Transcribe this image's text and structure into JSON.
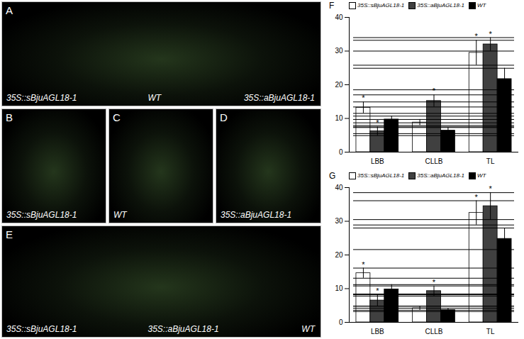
{
  "photo_panels": [
    {
      "letter": "A",
      "labels": [
        "35S::sBjuAGL18-1",
        "WT",
        "35S::aBjuAGL18-1"
      ]
    },
    {
      "letter": "B",
      "labels": [
        "35S::sBjuAGL18-1"
      ]
    },
    {
      "letter": "C",
      "labels": [
        "WT"
      ]
    },
    {
      "letter": "D",
      "labels": [
        "35S::aBjuAGL18-1"
      ]
    },
    {
      "letter": "E",
      "labels": [
        "35S::sBjuAGL18-1",
        "35S::aBjuAGL18-1",
        "WT"
      ]
    }
  ],
  "chart_data": [
    {
      "type": "bar",
      "title": "F",
      "categories": [
        "LBB",
        "CLLB",
        "TL"
      ],
      "ylim": [
        0,
        40
      ],
      "yticks": [
        0,
        10,
        20,
        30,
        40
      ],
      "legend": "top",
      "series": [
        {
          "name": "35S::sBjuAGL18-1",
          "color": "#ffffff",
          "values": [
            13.2,
            8.8,
            29.5
          ],
          "errors": [
            1.7,
            0.9,
            3.7
          ],
          "significance": [
            "*",
            null,
            "*"
          ]
        },
        {
          "name": "35S::aBjuAGL18-1",
          "color": "#404040",
          "values": [
            6.2,
            15.2,
            32.0
          ],
          "errors": [
            1.3,
            1.8,
            2.0
          ],
          "significance": [
            "*",
            "*",
            "*"
          ]
        },
        {
          "name": "WT",
          "color": "#000000",
          "values": [
            9.7,
            6.4,
            21.7
          ],
          "errors": [
            1.0,
            0.9,
            3.2
          ],
          "significance": [
            null,
            null,
            null
          ]
        }
      ]
    },
    {
      "type": "bar",
      "title": "G",
      "categories": [
        "LBB",
        "CLLB",
        "TL"
      ],
      "ylim": [
        0,
        40
      ],
      "yticks": [
        0,
        10,
        20,
        30,
        40
      ],
      "legend": "top",
      "series": [
        {
          "name": "35S::sBjuAGL18-1",
          "color": "#ffffff",
          "values": [
            14.6,
            4.2,
            32.5
          ],
          "errors": [
            1.5,
            0.6,
            3.6
          ],
          "significance": [
            "*",
            null,
            "*"
          ]
        },
        {
          "name": "35S::aBjuAGL18-1",
          "color": "#404040",
          "values": [
            6.5,
            9.3,
            34.5
          ],
          "errors": [
            1.7,
            1.5,
            4.0
          ],
          "significance": [
            "*",
            "*",
            "*"
          ]
        },
        {
          "name": "WT",
          "color": "#000000",
          "values": [
            9.8,
            3.7,
            24.8
          ],
          "errors": [
            1.4,
            0.5,
            3.2
          ],
          "significance": [
            null,
            null,
            null
          ]
        }
      ]
    }
  ]
}
